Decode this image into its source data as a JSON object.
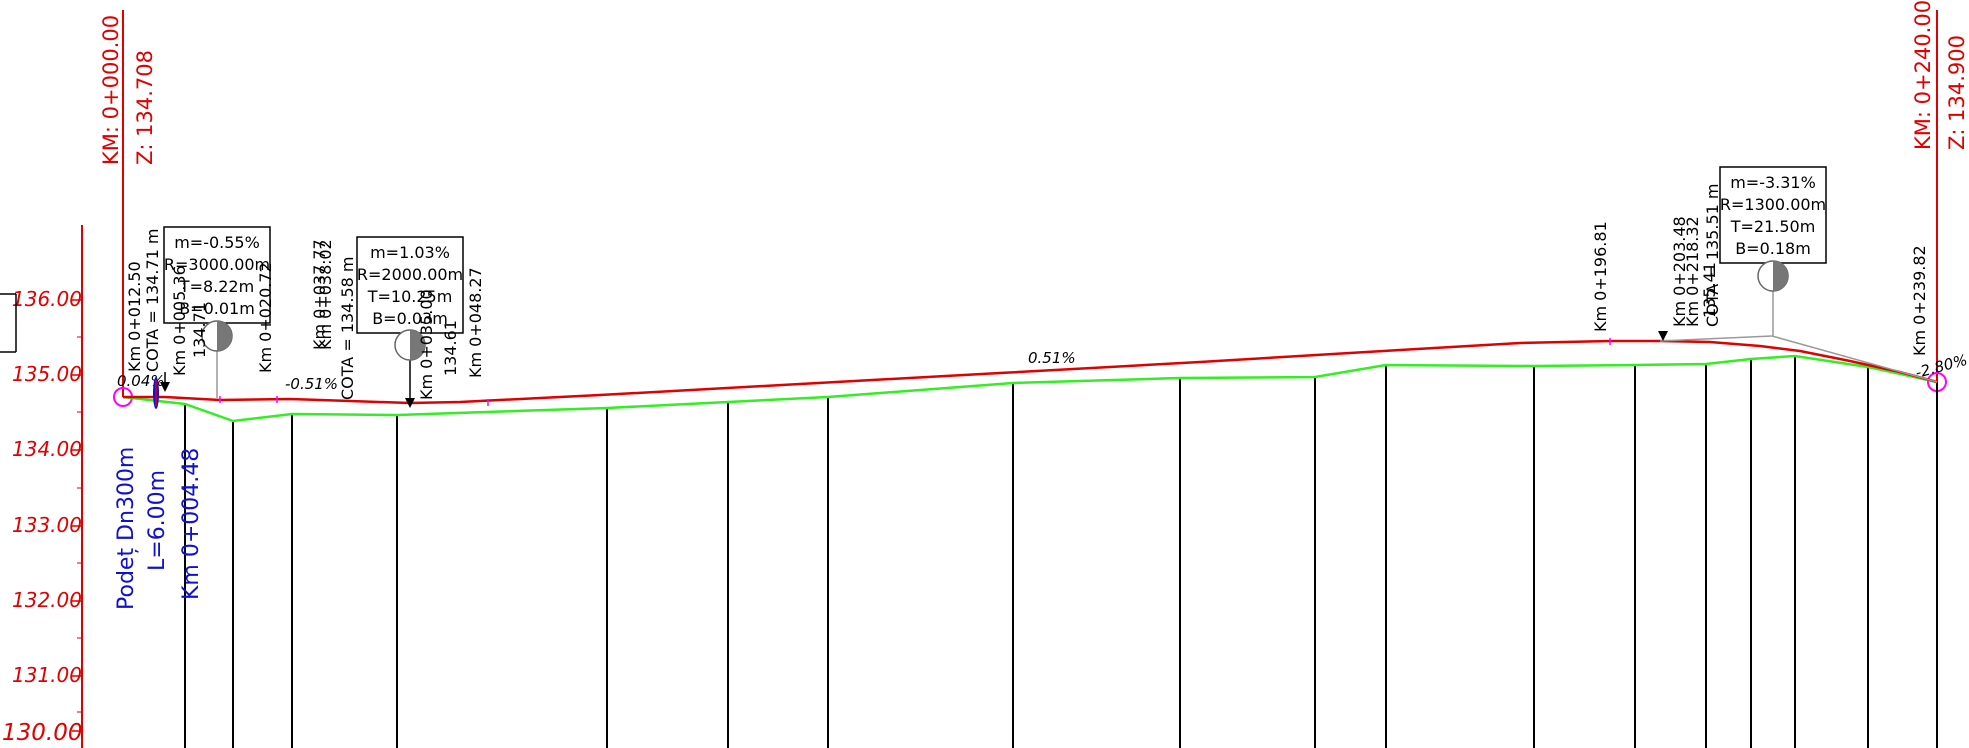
{
  "start": {
    "km": "KM: 0+000.00",
    "z": "Z: 134.708"
  },
  "end": {
    "km": "KM: 0+240.00",
    "z": "Z: 134.900"
  },
  "elevations": [
    "136.00",
    "135.00",
    "134.00",
    "133.00",
    "132.00",
    "131.00",
    "130.00"
  ],
  "curves": [
    {
      "m": "m=-0.55%",
      "r": "R=3000.00m",
      "t": "T=8.22m",
      "b": "B=0.01m"
    },
    {
      "m": "m=1.03%",
      "r": "R=2000.00m",
      "t": "T=10.25m",
      "b": "B=0.03m"
    },
    {
      "m": "m=-3.31%",
      "r": "R=1300.00m",
      "t": "T=21.50m",
      "b": "B=0.18m"
    }
  ],
  "slopes": [
    "0.04%",
    "-0.51%",
    "0.51%",
    "-2.80%"
  ],
  "stations": {
    "s1": "Km 0+012.50",
    "s1_cota": "COTA = 134.71 m",
    "s2": "Km 0+005.36",
    "s2_z": "134.71",
    "s3": "Km 0+020.72",
    "s4": "Km 0+037.77",
    "s5": "Km 0+038.02",
    "s5_cota": "COTA = 134.58 m",
    "s6": "Km 0+035.00",
    "s6_z": "134.61",
    "s7": "Km 0+048.27",
    "s8": "Km 0+196.81",
    "s9": "Km 0+203.48",
    "s10": "Km 0+218.32",
    "s10_z": "135.41",
    "s10_cota": "COTA = 135.51 m",
    "s11": "Km 0+239.82"
  },
  "culvert": {
    "name": "Podeț Dn300m",
    "length": "L=6.00m",
    "km": "Km 0+004.48"
  },
  "colors": {
    "design": "#e00000",
    "terrain": "#33ee22",
    "culvert": "#1010d0",
    "marker": "#ff00ff"
  }
}
